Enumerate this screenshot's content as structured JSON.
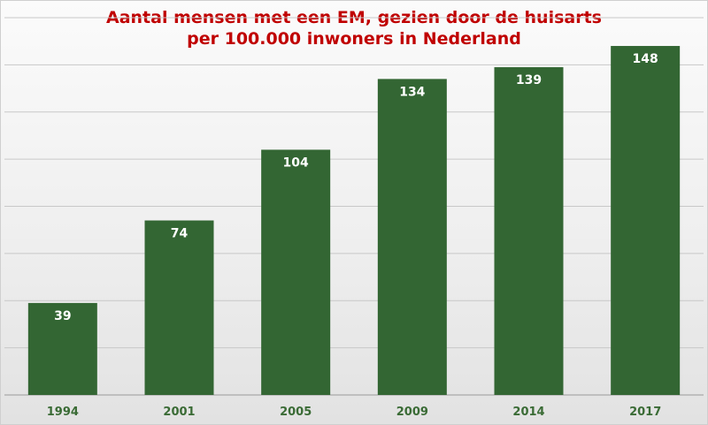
{
  "chart_data": {
    "type": "bar",
    "title": "Aantal mensen met een EM, gezien door de huisarts",
    "subtitle": "per 100.000 inwoners in Nederland",
    "categories": [
      "1994",
      "2001",
      "2005",
      "2009",
      "2014",
      "2017"
    ],
    "values": [
      39,
      74,
      104,
      134,
      139,
      148
    ],
    "xlabel": "",
    "ylabel": "",
    "ylim": [
      0,
      160
    ],
    "grid": true,
    "bar_color": "#336633",
    "data_label_color": "#ffffff",
    "title_color": "#c00000",
    "tick_label_color": "#3a6b35"
  }
}
